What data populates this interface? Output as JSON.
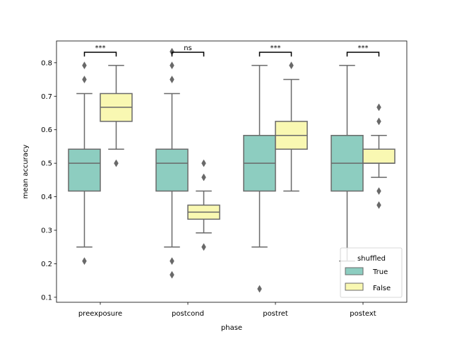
{
  "chart_data": {
    "type": "box",
    "xlabel": "phase",
    "ylabel": "mean accuracy",
    "ylim": [
      0.085,
      0.865
    ],
    "yticks": [
      "0.1",
      "0.2",
      "0.3",
      "0.4",
      "0.5",
      "0.6",
      "0.7",
      "0.8"
    ],
    "categories": [
      "preexposure",
      "postcond",
      "postret",
      "postext"
    ],
    "legend": {
      "title": "shuffled",
      "position": "lower right",
      "entries": [
        "True",
        "False"
      ]
    },
    "colors": {
      "True": "#8dcdc0",
      "False": "#f9f8b2",
      "line": "#696969"
    },
    "series": [
      {
        "name": "True",
        "boxes": [
          {
            "q1": 0.417,
            "median": 0.5,
            "q3": 0.542,
            "whislo": 0.25,
            "whishi": 0.708,
            "fliers": [
              0.208,
              0.75,
              0.792
            ]
          },
          {
            "q1": 0.417,
            "median": 0.5,
            "q3": 0.542,
            "whislo": 0.25,
            "whishi": 0.708,
            "fliers": [
              0.167,
              0.208,
              0.75,
              0.792,
              0.833
            ]
          },
          {
            "q1": 0.417,
            "median": 0.5,
            "q3": 0.583,
            "whislo": 0.25,
            "whishi": 0.792,
            "fliers": [
              0.125
            ]
          },
          {
            "q1": 0.417,
            "median": 0.5,
            "q3": 0.583,
            "whislo": 0.208,
            "whishi": 0.792,
            "fliers": []
          }
        ]
      },
      {
        "name": "False",
        "boxes": [
          {
            "q1": 0.625,
            "median": 0.667,
            "q3": 0.708,
            "whislo": 0.542,
            "whishi": 0.792,
            "fliers": [
              0.5
            ]
          },
          {
            "q1": 0.333,
            "median": 0.354,
            "q3": 0.375,
            "whislo": 0.292,
            "whishi": 0.417,
            "fliers": [
              0.25,
              0.458,
              0.5
            ]
          },
          {
            "q1": 0.542,
            "median": 0.583,
            "q3": 0.625,
            "whislo": 0.417,
            "whishi": 0.75,
            "fliers": [
              0.792
            ]
          },
          {
            "q1": 0.5,
            "median": 0.5,
            "q3": 0.542,
            "whislo": 0.458,
            "whishi": 0.583,
            "fliers": [
              0.375,
              0.417,
              0.625,
              0.667
            ]
          }
        ]
      }
    ],
    "annotations": [
      {
        "category": "preexposure",
        "text": "***"
      },
      {
        "category": "postcond",
        "text": "ns"
      },
      {
        "category": "postret",
        "text": "***"
      },
      {
        "category": "postext",
        "text": "***"
      }
    ]
  }
}
